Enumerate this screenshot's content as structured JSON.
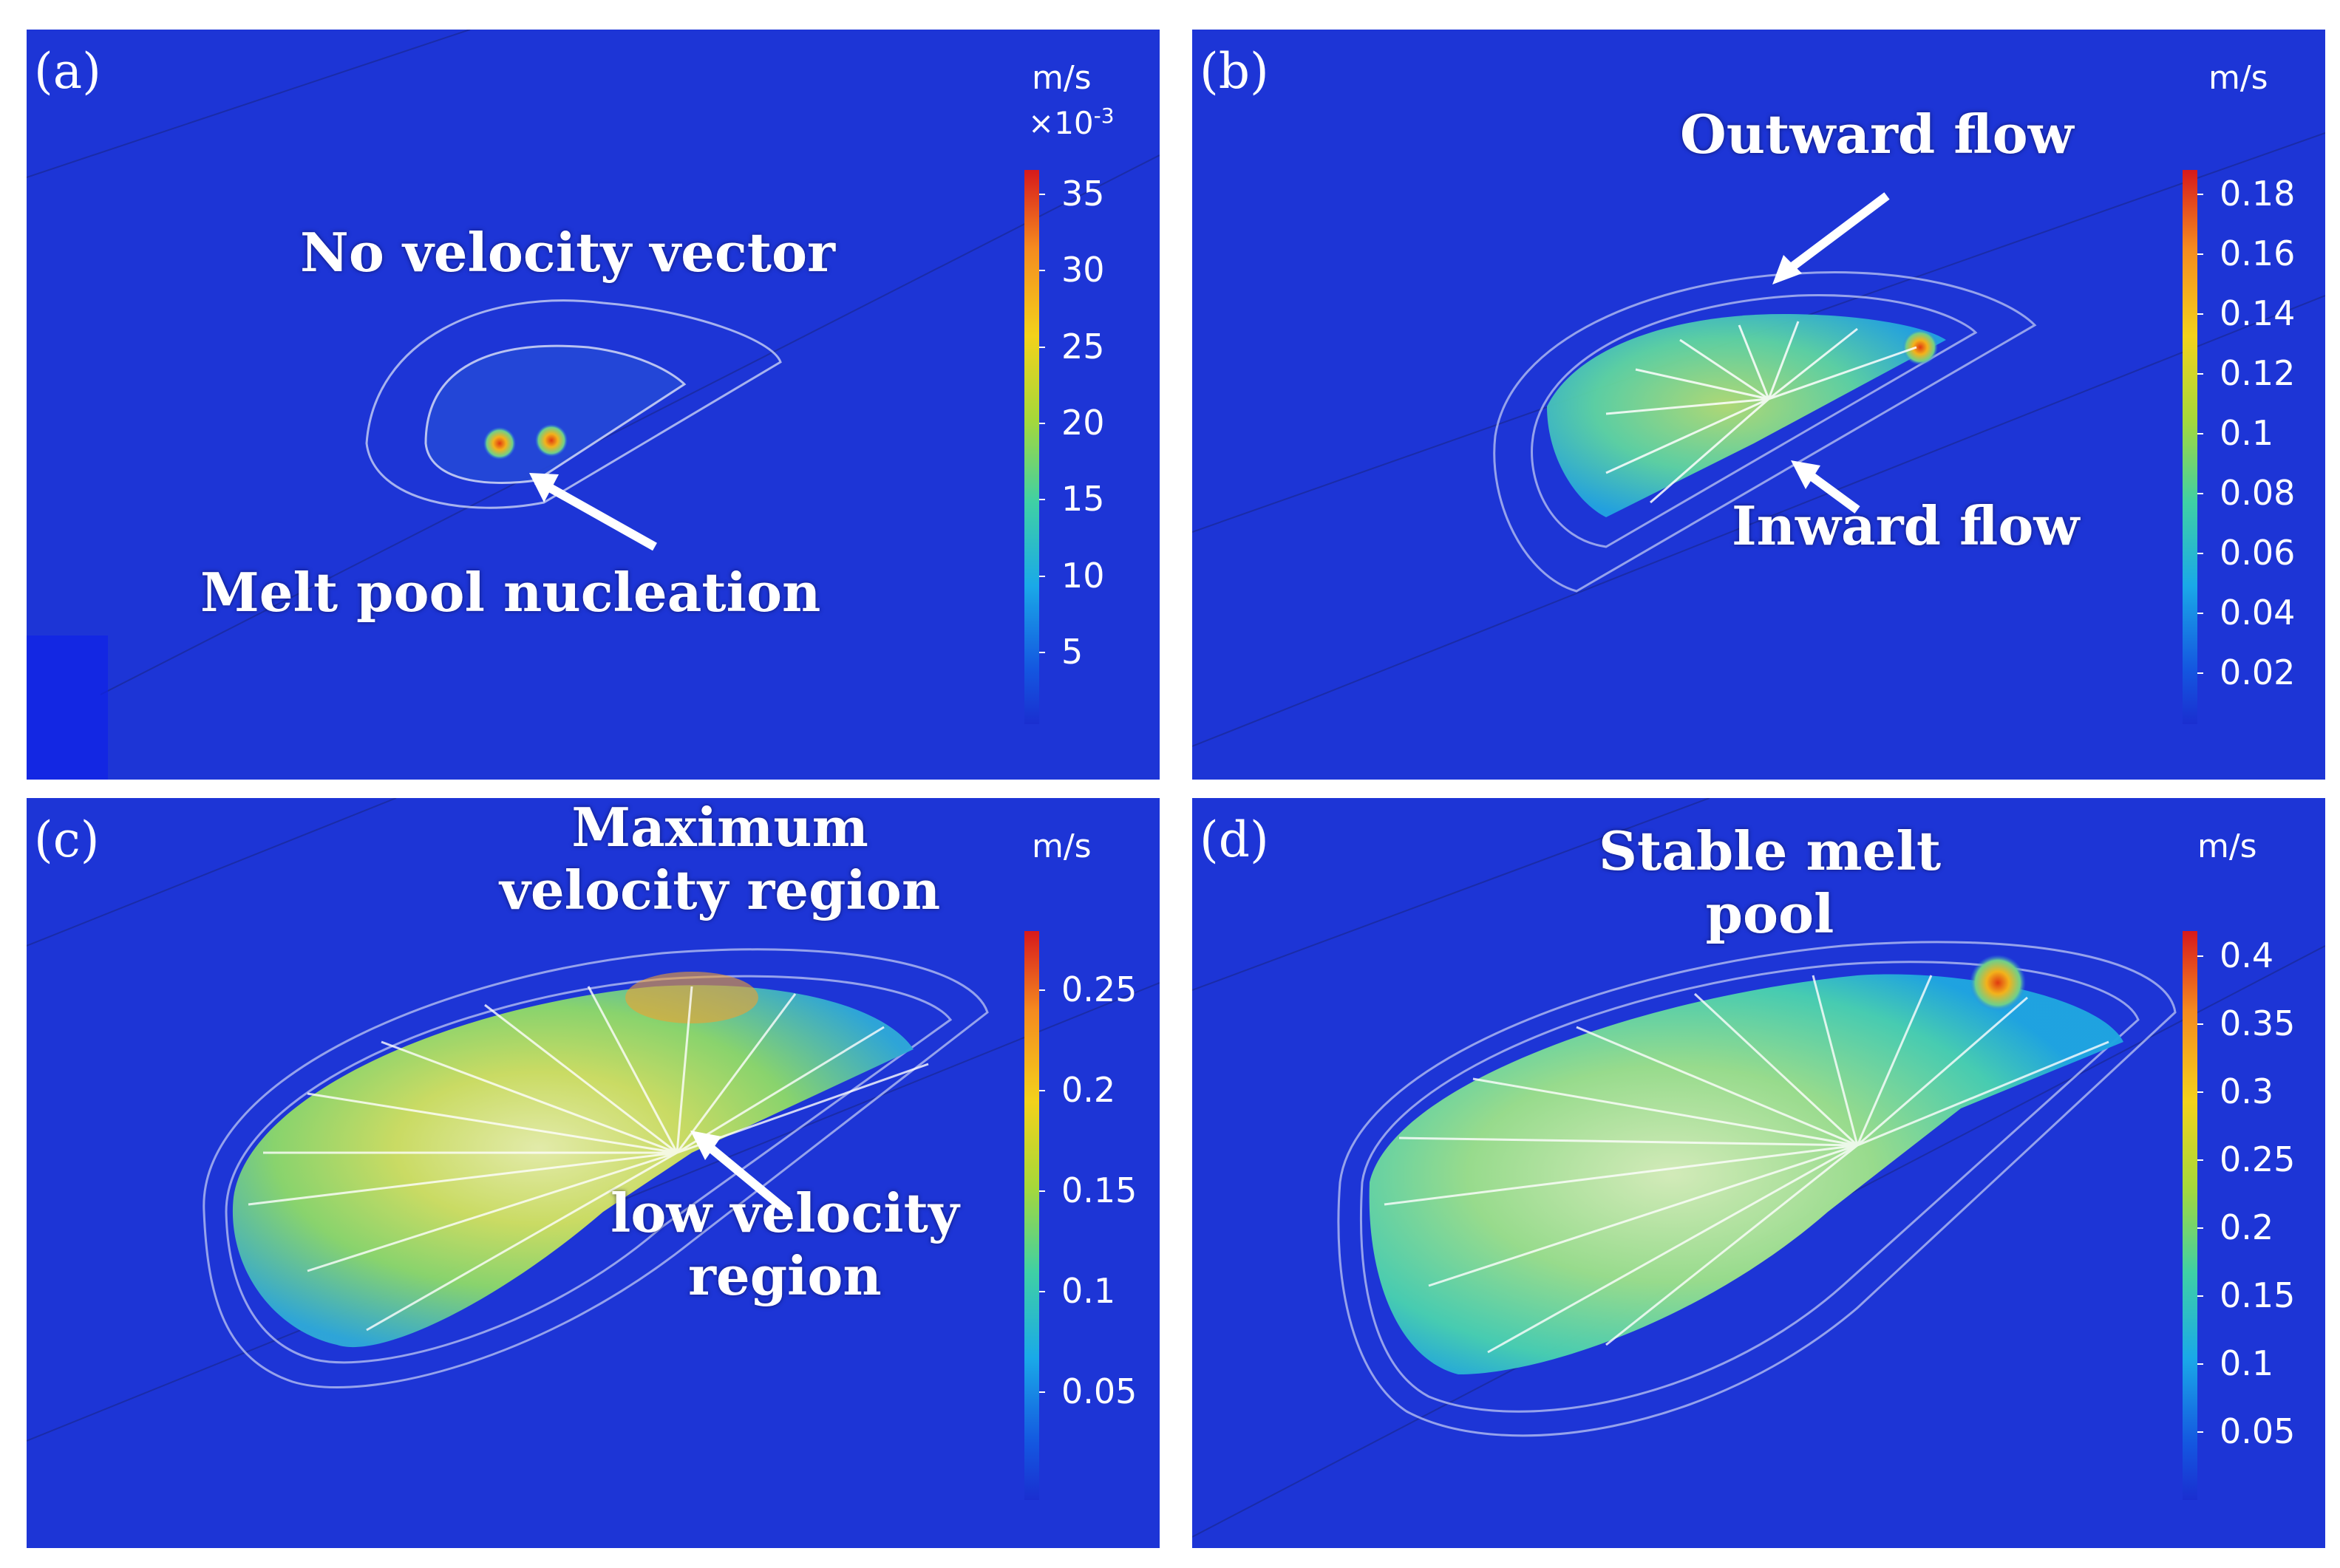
{
  "panels": [
    {
      "label": "(a)",
      "unit": "m/s",
      "multiplier_base": "×10",
      "multiplier_exp": "-3",
      "ticks": [
        "35",
        "30",
        "25",
        "20",
        "15",
        "10",
        "5"
      ],
      "annotations": [
        "No velocity vector",
        "Melt pool nucleation"
      ]
    },
    {
      "label": "(b)",
      "unit": "m/s",
      "ticks": [
        "0.18",
        "0.16",
        "0.14",
        "0.12",
        "0.1",
        "0.08",
        "0.06",
        "0.04",
        "0.02"
      ],
      "annotations": [
        "Outward flow",
        "Inward flow"
      ]
    },
    {
      "label": "(c)",
      "unit": "m/s",
      "ticks": [
        "0.25",
        "0.2",
        "0.15",
        "0.1",
        "0.05"
      ],
      "annotations": [
        "Maximum",
        "velocity region",
        "low velocity",
        "region"
      ]
    },
    {
      "label": "(d)",
      "unit": "m/s",
      "ticks": [
        "0.4",
        "0.35",
        "0.3",
        "0.25",
        "0.2",
        "0.15",
        "0.1",
        "0.05"
      ],
      "annotations": [
        "Stable melt",
        "pool"
      ]
    }
  ],
  "colors": {
    "background": "#1d35d6",
    "low": "#1a2fd0",
    "mid": "#3fd0a5",
    "high": "#f3d21b",
    "max": "#d7191c",
    "text": "#ffffff"
  }
}
